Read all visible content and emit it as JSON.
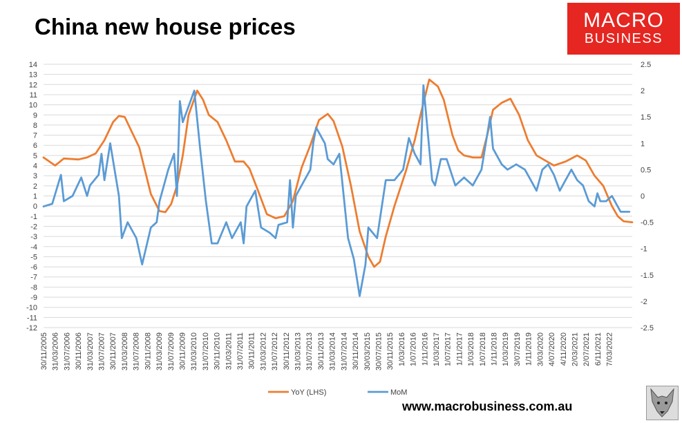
{
  "title": "China new house prices",
  "logo": {
    "line1": "MACRO",
    "line2": "BUSINESS"
  },
  "footer_url": "www.macrobusiness.com.au",
  "colors": {
    "yoy": "#ed7d31",
    "mom": "#5b9bd5",
    "grid": "#d9d9d9",
    "logo_bg": "#e62621"
  },
  "chart_data": {
    "type": "line",
    "title": "China new house prices",
    "grid": true,
    "legend_position": "bottom",
    "x_range": [
      "2005-11",
      "2022-10"
    ],
    "y_left": {
      "min": -12,
      "max": 14,
      "step": 1,
      "ticks": [
        "14",
        "13",
        "12",
        "11",
        "10",
        "9",
        "8",
        "7",
        "6",
        "5",
        "4",
        "3",
        "2",
        "1",
        "0",
        "-1",
        "-2",
        "-3",
        "-4",
        "-5",
        "-6",
        "-7",
        "-8",
        "-9",
        "-10",
        "-11",
        "-12"
      ]
    },
    "y_right": {
      "min": -2.5,
      "max": 2.5,
      "step": 0.5,
      "ticks": [
        "2.5",
        "2",
        "1.5",
        "1",
        "0.5",
        "0",
        "-0.5",
        "-1",
        "-1.5",
        "-2",
        "-2.5"
      ]
    },
    "x_tick_labels": [
      "30/11/2005",
      "31/03/2006",
      "31/07/2006",
      "30/11/2006",
      "31/03/2007",
      "31/07/2007",
      "30/11/2007",
      "31/03/2008",
      "31/07/2008",
      "30/11/2008",
      "31/03/2009",
      "31/07/2009",
      "30/11/2009",
      "31/03/2010",
      "31/07/2010",
      "30/11/2010",
      "31/03/2011",
      "31/07/2011",
      "30/11/2011",
      "31/03/2012",
      "31/07/2012",
      "30/11/2012",
      "31/03/2013",
      "31/07/2013",
      "30/11/2013",
      "31/03/2014",
      "31/07/2014",
      "30/11/2014",
      "30/03/2015",
      "30/07/2015",
      "30/11/2015",
      "1/03/2016",
      "1/07/2016",
      "1/11/2016",
      "1/03/2017",
      "1/07/2017",
      "1/11/2017",
      "1/03/2018",
      "1/07/2018",
      "1/11/2018",
      "1/03/2019",
      "3/07/2019",
      "1/11/2019",
      "3/03/2020",
      "4/07/2020",
      "4/11/2020",
      "2/03/2021",
      "2/07/2021",
      "6/11/2021",
      "7/03/2022"
    ],
    "series": [
      {
        "name": "YoY (LHS)",
        "axis": "left",
        "points": [
          [
            "2005-11",
            4.8
          ],
          [
            "2006-03",
            4.0
          ],
          [
            "2006-06",
            4.7
          ],
          [
            "2006-11",
            4.6
          ],
          [
            "2007-02",
            4.8
          ],
          [
            "2007-05",
            5.2
          ],
          [
            "2007-08",
            6.5
          ],
          [
            "2007-11",
            8.3
          ],
          [
            "2008-01",
            8.9
          ],
          [
            "2008-03",
            8.8
          ],
          [
            "2008-05",
            7.6
          ],
          [
            "2008-08",
            5.8
          ],
          [
            "2008-10",
            3.5
          ],
          [
            "2008-12",
            1.2
          ],
          [
            "2009-03",
            -0.5
          ],
          [
            "2009-05",
            -0.6
          ],
          [
            "2009-07",
            0.2
          ],
          [
            "2009-09",
            2.0
          ],
          [
            "2009-11",
            5.0
          ],
          [
            "2010-01",
            9.0
          ],
          [
            "2010-04",
            11.4
          ],
          [
            "2010-06",
            10.5
          ],
          [
            "2010-08",
            9.0
          ],
          [
            "2010-11",
            8.3
          ],
          [
            "2011-02",
            6.5
          ],
          [
            "2011-05",
            4.4
          ],
          [
            "2011-08",
            4.4
          ],
          [
            "2011-10",
            3.7
          ],
          [
            "2012-01",
            1.5
          ],
          [
            "2012-04",
            -0.8
          ],
          [
            "2012-07",
            -1.2
          ],
          [
            "2012-10",
            -1.0
          ],
          [
            "2013-01",
            0.5
          ],
          [
            "2013-04",
            3.8
          ],
          [
            "2013-07",
            6.0
          ],
          [
            "2013-10",
            8.5
          ],
          [
            "2014-01",
            9.1
          ],
          [
            "2014-03",
            8.4
          ],
          [
            "2014-06",
            5.9
          ],
          [
            "2014-09",
            2.0
          ],
          [
            "2014-12",
            -2.5
          ],
          [
            "2015-03",
            -5.0
          ],
          [
            "2015-05",
            -6.0
          ],
          [
            "2015-07",
            -5.5
          ],
          [
            "2015-09",
            -3.0
          ],
          [
            "2015-12",
            0.0
          ],
          [
            "2016-04",
            3.5
          ],
          [
            "2016-07",
            6.5
          ],
          [
            "2016-09",
            9.0
          ],
          [
            "2016-12",
            12.5
          ],
          [
            "2017-03",
            11.8
          ],
          [
            "2017-05",
            10.5
          ],
          [
            "2017-08",
            7.0
          ],
          [
            "2017-10",
            5.5
          ],
          [
            "2017-12",
            5.0
          ],
          [
            "2018-03",
            4.8
          ],
          [
            "2018-06",
            4.8
          ],
          [
            "2018-08",
            7.0
          ],
          [
            "2018-10",
            9.5
          ],
          [
            "2019-01",
            10.2
          ],
          [
            "2019-04",
            10.6
          ],
          [
            "2019-07",
            9.0
          ],
          [
            "2019-10",
            6.5
          ],
          [
            "2020-01",
            5.0
          ],
          [
            "2020-04",
            4.5
          ],
          [
            "2020-07",
            4.0
          ],
          [
            "2020-11",
            4.4
          ],
          [
            "2021-03",
            5.0
          ],
          [
            "2021-06",
            4.5
          ],
          [
            "2021-09",
            3.0
          ],
          [
            "2021-12",
            2.0
          ],
          [
            "2022-03",
            0.0
          ],
          [
            "2022-05",
            -1.0
          ],
          [
            "2022-07",
            -1.5
          ],
          [
            "2022-10",
            -1.6
          ]
        ]
      },
      {
        "name": "MoM",
        "axis": "right",
        "points": [
          [
            "2005-11",
            -0.2
          ],
          [
            "2006-02",
            -0.15
          ],
          [
            "2006-05",
            0.4
          ],
          [
            "2006-06",
            -0.1
          ],
          [
            "2006-09",
            0.0
          ],
          [
            "2006-12",
            0.35
          ],
          [
            "2007-02",
            0.0
          ],
          [
            "2007-03",
            0.2
          ],
          [
            "2007-06",
            0.4
          ],
          [
            "2007-07",
            0.8
          ],
          [
            "2007-08",
            0.3
          ],
          [
            "2007-10",
            1.0
          ],
          [
            "2008-01",
            0.0
          ],
          [
            "2008-02",
            -0.8
          ],
          [
            "2008-04",
            -0.5
          ],
          [
            "2008-07",
            -0.8
          ],
          [
            "2008-09",
            -1.3
          ],
          [
            "2008-12",
            -0.6
          ],
          [
            "2009-02",
            -0.5
          ],
          [
            "2009-03",
            -0.1
          ],
          [
            "2009-06",
            0.5
          ],
          [
            "2009-08",
            0.8
          ],
          [
            "2009-09",
            0.0
          ],
          [
            "2009-10",
            1.8
          ],
          [
            "2009-11",
            1.4
          ],
          [
            "2010-03",
            2.0
          ],
          [
            "2010-05",
            0.9
          ],
          [
            "2010-07",
            -0.1
          ],
          [
            "2010-09",
            -0.9
          ],
          [
            "2010-11",
            -0.9
          ],
          [
            "2011-02",
            -0.5
          ],
          [
            "2011-04",
            -0.8
          ],
          [
            "2011-07",
            -0.5
          ],
          [
            "2011-08",
            -0.9
          ],
          [
            "2011-09",
            -0.2
          ],
          [
            "2011-12",
            0.1
          ],
          [
            "2012-02",
            -0.6
          ],
          [
            "2012-05",
            -0.7
          ],
          [
            "2012-07",
            -0.8
          ],
          [
            "2012-08",
            -0.55
          ],
          [
            "2012-11",
            -0.5
          ],
          [
            "2012-12",
            0.3
          ],
          [
            "2013-01",
            -0.6
          ],
          [
            "2013-02",
            0.0
          ],
          [
            "2013-05",
            0.3
          ],
          [
            "2013-07",
            0.5
          ],
          [
            "2013-08",
            1.0
          ],
          [
            "2013-09",
            1.3
          ],
          [
            "2013-12",
            1.0
          ],
          [
            "2014-01",
            0.7
          ],
          [
            "2014-03",
            0.6
          ],
          [
            "2014-05",
            0.8
          ],
          [
            "2014-08",
            -0.8
          ],
          [
            "2014-10",
            -1.2
          ],
          [
            "2014-12",
            -1.9
          ],
          [
            "2015-02",
            -1.3
          ],
          [
            "2015-03",
            -0.6
          ],
          [
            "2015-06",
            -0.8
          ],
          [
            "2015-09",
            0.3
          ],
          [
            "2015-12",
            0.3
          ],
          [
            "2016-03",
            0.5
          ],
          [
            "2016-05",
            1.1
          ],
          [
            "2016-07",
            0.8
          ],
          [
            "2016-09",
            0.6
          ],
          [
            "2016-10",
            2.1
          ],
          [
            "2017-01",
            0.3
          ],
          [
            "2017-02",
            0.2
          ],
          [
            "2017-04",
            0.7
          ],
          [
            "2017-06",
            0.7
          ],
          [
            "2017-09",
            0.2
          ],
          [
            "2017-12",
            0.35
          ],
          [
            "2018-03",
            0.2
          ],
          [
            "2018-06",
            0.5
          ],
          [
            "2018-09",
            1.5
          ],
          [
            "2018-10",
            0.9
          ],
          [
            "2019-01",
            0.6
          ],
          [
            "2019-03",
            0.5
          ],
          [
            "2019-06",
            0.6
          ],
          [
            "2019-09",
            0.5
          ],
          [
            "2019-11",
            0.3
          ],
          [
            "2020-01",
            0.1
          ],
          [
            "2020-03",
            0.5
          ],
          [
            "2020-05",
            0.6
          ],
          [
            "2020-07",
            0.4
          ],
          [
            "2020-09",
            0.1
          ],
          [
            "2020-11",
            0.3
          ],
          [
            "2021-01",
            0.5
          ],
          [
            "2021-03",
            0.3
          ],
          [
            "2021-05",
            0.2
          ],
          [
            "2021-07",
            -0.1
          ],
          [
            "2021-09",
            -0.2
          ],
          [
            "2021-10",
            0.05
          ],
          [
            "2021-11",
            -0.1
          ],
          [
            "2022-01",
            -0.1
          ],
          [
            "2022-03",
            0.0
          ],
          [
            "2022-06",
            -0.3
          ],
          [
            "2022-09",
            -0.3
          ]
        ]
      }
    ]
  }
}
